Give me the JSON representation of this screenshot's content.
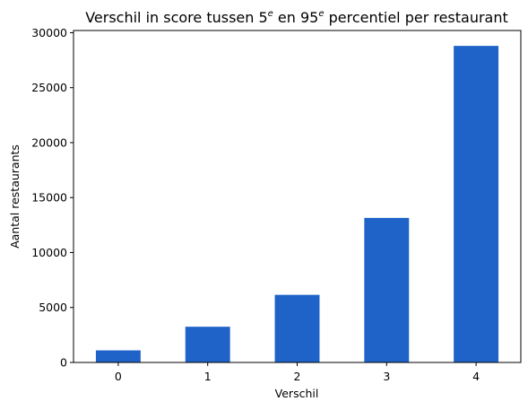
{
  "chart_data": {
    "type": "bar",
    "title": {
      "prefix": "Verschil in score tussen 5",
      "sup1": "e",
      "middle": " en 95",
      "sup2": "e",
      "suffix": " percentiel per restaurant"
    },
    "xlabel": "Verschil",
    "ylabel": "Aantal restaurants",
    "categories": [
      "0",
      "1",
      "2",
      "3",
      "4"
    ],
    "values": [
      1100,
      3250,
      6150,
      13150,
      28800
    ],
    "ylim": [
      0,
      30200
    ],
    "yticks": [
      0,
      5000,
      10000,
      15000,
      20000,
      25000,
      30000
    ],
    "grid": false,
    "bar_color": "#1f63c8"
  }
}
